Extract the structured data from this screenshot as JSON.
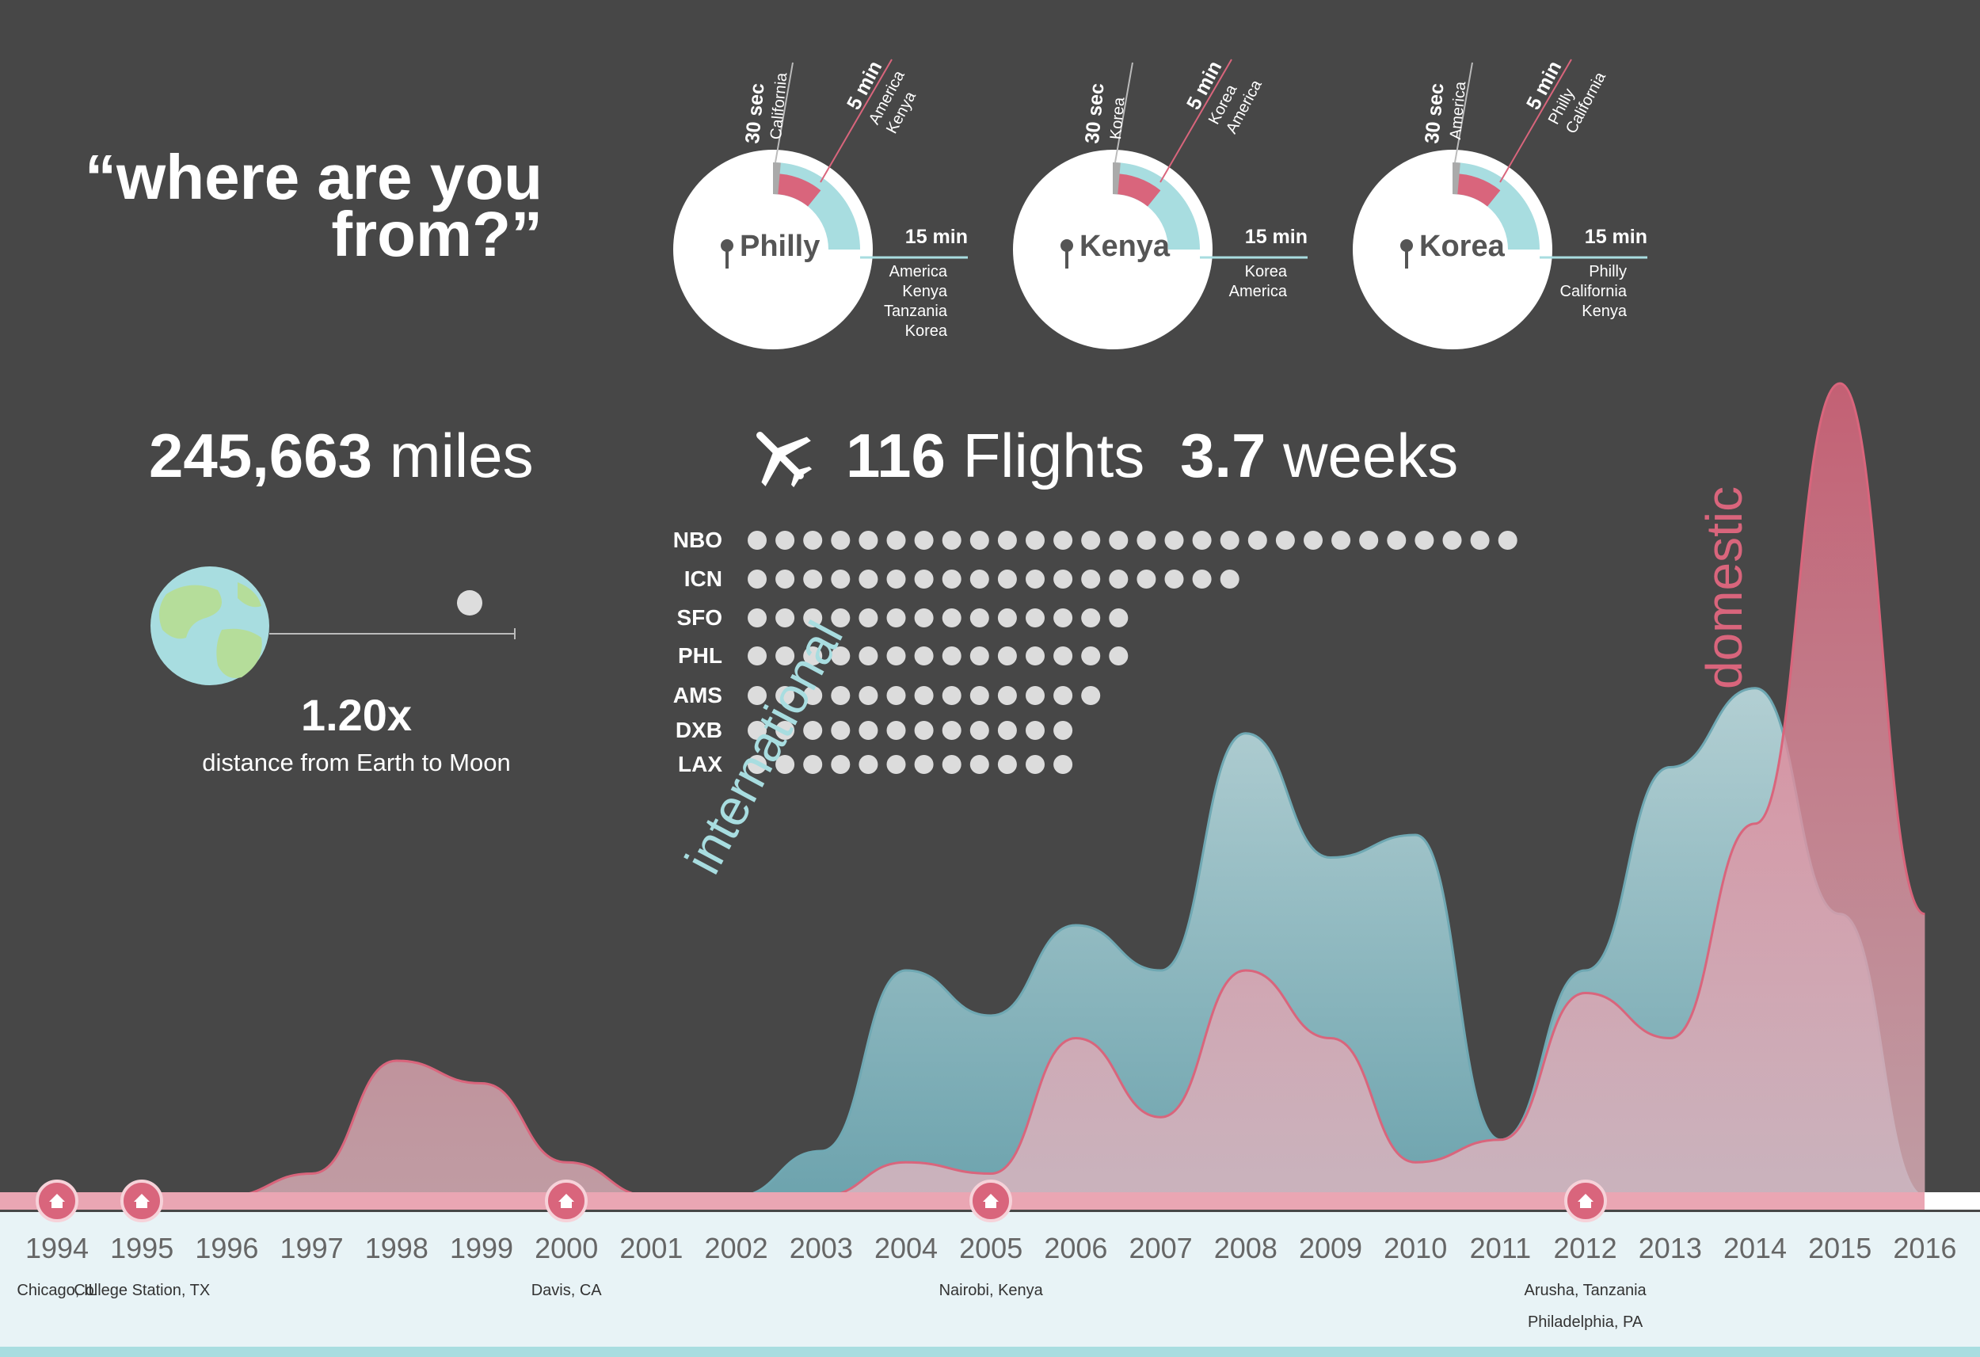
{
  "title": "“where are you from?”",
  "title_line1": "“where are you",
  "title_line2": "from?”",
  "stats": {
    "miles_value": "245,663",
    "miles_unit": "miles",
    "ratio": "1.20x",
    "ratio_caption": "distance from Earth to Moon",
    "flights_value": "116",
    "flights_unit": "Flights",
    "weeks_value": "3.7",
    "weeks_unit": "weeks"
  },
  "home_circles": [
    {
      "name": "Philly",
      "t30_label": "30 sec",
      "t30_places": "California",
      "t5_label": "5 min",
      "t5_places": [
        "America",
        "Kenya"
      ],
      "t15_label": "15 min",
      "t15_places": [
        "America",
        "Kenya",
        "Tanzania",
        "Korea"
      ]
    },
    {
      "name": "Kenya",
      "t30_label": "30 sec",
      "t30_places": "Korea",
      "t5_label": "5 min",
      "t5_places": [
        "Korea",
        "America"
      ],
      "t15_label": "15 min",
      "t15_places": [
        "Korea",
        "America"
      ]
    },
    {
      "name": "Korea",
      "t30_label": "30 sec",
      "t30_places": "America",
      "t5_label": "5 min",
      "t5_places": [
        "Philly",
        "California"
      ],
      "t15_label": "15 min",
      "t15_places": [
        "Philly",
        "California",
        "Kenya"
      ]
    }
  ],
  "colors": {
    "background": "#474747",
    "domestic": "#d9657c",
    "international": "#6fa8b3",
    "light_blue": "#a8dde0",
    "timeline_bar": "#eaa6b3",
    "timeline_bg": "#e8f3f6"
  },
  "chart_data": [
    {
      "type": "bar",
      "title": "",
      "categories": [
        "NBO",
        "ICN",
        "SFO",
        "PHL",
        "AMS",
        "DXB",
        "LAX"
      ],
      "values": [
        28,
        18,
        14,
        14,
        13,
        12,
        12
      ],
      "unit_mark": "dot"
    },
    {
      "type": "area",
      "x": [
        1994,
        1995,
        1996,
        1997,
        1998,
        1999,
        2000,
        2001,
        2002,
        2003,
        2004,
        2005,
        2006,
        2007,
        2008,
        2009,
        2010,
        2011,
        2012,
        2013,
        2014,
        2015,
        2016
      ],
      "series": [
        {
          "name": "domestic",
          "values": [
            0,
            0,
            0,
            2,
            12,
            10,
            3,
            0,
            0,
            0,
            3,
            2,
            14,
            7,
            20,
            14,
            3,
            5,
            18,
            14,
            33,
            72,
            25
          ]
        },
        {
          "name": "international",
          "values": [
            0,
            0,
            0,
            0,
            0,
            0,
            0,
            0,
            0,
            4,
            20,
            16,
            24,
            20,
            41,
            30,
            32,
            5,
            20,
            38,
            45,
            25,
            0
          ]
        }
      ],
      "ylim": [
        0,
        80
      ]
    }
  ],
  "timeline": {
    "years": [
      "1994",
      "1995",
      "1996",
      "1997",
      "1998",
      "1999",
      "2000",
      "2001",
      "2002",
      "2003",
      "2004",
      "2005",
      "2006",
      "2007",
      "2008",
      "2009",
      "2010",
      "2011",
      "2012",
      "2013",
      "2014",
      "2015",
      "2016"
    ],
    "moves": [
      {
        "year": "1994",
        "label": "Chicago, IL"
      },
      {
        "year": "1995",
        "label": "College Station, TX"
      },
      {
        "year": "2000",
        "label": "Davis, CA"
      },
      {
        "year": "2005",
        "label": "Nairobi, Kenya"
      },
      {
        "year": "2012",
        "label": "Arusha, Tanzania",
        "label2": "Philadelphia, PA"
      }
    ]
  },
  "area_labels": {
    "international": "international",
    "domestic": "domestic"
  }
}
